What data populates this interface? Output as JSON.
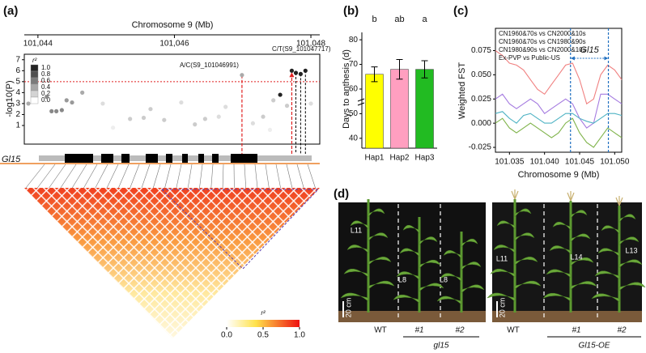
{
  "panel_labels": [
    "(a)",
    "(b)",
    "(c)",
    "(d)"
  ],
  "chart_data": [
    {
      "type": "scatter",
      "xlabel": "Chromosome 9 (Mb)",
      "ylabel": "-log10(P)",
      "x": [
        101043.86,
        101044.2,
        101044.27,
        101044.35,
        101044.13,
        101044.42,
        101044.5,
        101044.65,
        101044.95,
        101045.35,
        101045.55,
        101045.65,
        101045.85,
        101046.1,
        101046.3,
        101046.45,
        101046.65,
        101046.75,
        101046.99,
        101047.15,
        101047.3,
        101047.45,
        101047.55,
        101047.65,
        101047.72,
        101047.78,
        101047.85,
        101047.92,
        101048.0,
        101047.4,
        101045.1
      ],
      "values": [
        3.0,
        2.3,
        2.3,
        2.4,
        3.6,
        3.3,
        3.1,
        4.0,
        3.0,
        1.6,
        1.7,
        2.5,
        1.5,
        3.1,
        1.1,
        1.6,
        1.8,
        2.7,
        5.6,
        1.2,
        1.8,
        3.3,
        3.8,
        2.8,
        6.0,
        5.8,
        5.7,
        6.0,
        3.0,
        0.6,
        0.8
      ],
      "point_colors": [
        "#aaa",
        "#888",
        "#888",
        "#888",
        "#888",
        "#999",
        "#999",
        "#aaa",
        "#ddd",
        "#ccc",
        "#ccc",
        "#ccc",
        "#ccc",
        "#ddd",
        "#ccc",
        "#ccc",
        "#ddd",
        "#ddd",
        "#aaa",
        "#ddd",
        "#ccc",
        "#ccc",
        "#222",
        "#ccc",
        "#222",
        "#222",
        "#222",
        "#222",
        "#ddd",
        "#eee",
        "#eee"
      ],
      "xlim": [
        101043.8,
        101048.13
      ],
      "xticks": [
        {
          "value": 101044,
          "label": "101,044"
        },
        {
          "value": 101046,
          "label": "101,046"
        },
        {
          "value": 101048,
          "label": "101,048"
        }
      ],
      "ylim": [
        -0.7,
        7.5
      ],
      "yticks": [
        1,
        2,
        3,
        4,
        5,
        6,
        7
      ],
      "threshold": 5,
      "threshold_color": "#e02020",
      "annotations": [
        "A/C(S9_101046991)",
        "C/T(S9_101047717)"
      ],
      "legend_title": "r²",
      "legend_levels": [
        {
          "value": 1,
          "label": "1.0"
        },
        0.8,
        0.6,
        0.4,
        0.2,
        {
          "value": 0,
          "label": "0.0"
        }
      ],
      "gene": "Gl15",
      "ld_colorbar": {
        "title": "r²",
        "ticks": [
          {
            "value": 0,
            "label": "0.0"
          },
          0.5,
          {
            "value": 1,
            "label": "1.0"
          }
        ]
      }
    },
    {
      "type": "bar",
      "ylabel": "Days to anthesis (d)",
      "categories": [
        "Hap1",
        "Hap2",
        "Hap3"
      ],
      "values": [
        66,
        68,
        68
      ],
      "errors": [
        3,
        4,
        3.5
      ],
      "colors": [
        "#ffff00",
        "#ff9fc0",
        "#22bb22"
      ],
      "letters": [
        "b",
        "ab",
        "a"
      ],
      "ylim": [
        36,
        83
      ],
      "yticks": [
        40,
        50,
        60,
        70,
        80
      ]
    },
    {
      "type": "line",
      "xlabel": "Chromosome 9 (Mb)",
      "ylabel": "Weighted FST",
      "x": [
        101.033,
        101.034,
        101.035,
        101.036,
        101.037,
        101.038,
        101.039,
        101.04,
        101.041,
        101.042,
        101.043,
        101.044,
        101.045,
        101.046,
        101.047,
        101.048,
        101.049,
        101.05,
        101.051
      ],
      "series": [
        {
          "name": "CN1960&70s vs CN2000&10s",
          "color": "#a57be0",
          "values": [
            0.025,
            0.03,
            0.02,
            0.015,
            0.02,
            0.025,
            0.02,
            0.01,
            0.015,
            0.02,
            0.025,
            0.02,
            0.005,
            -0.005,
            0.0,
            0.03,
            0.03,
            0.025,
            0.02
          ]
        },
        {
          "name": "CN1960&70s vs CN1980&90s",
          "color": "#f08080",
          "values": [
            0.075,
            0.07,
            0.062,
            0.06,
            0.055,
            0.045,
            0.035,
            0.03,
            0.04,
            0.05,
            0.06,
            0.062,
            0.045,
            0.02,
            0.025,
            0.05,
            0.06,
            0.055,
            0.045
          ]
        },
        {
          "name": "CN1980&90s vs CN2000&10s",
          "color": "#7fb34a",
          "values": [
            0.0,
            0.005,
            -0.005,
            -0.01,
            -0.005,
            0.0,
            -0.005,
            -0.01,
            -0.015,
            -0.01,
            0.0,
            0.005,
            -0.01,
            -0.02,
            -0.025,
            -0.015,
            -0.005,
            -0.01,
            -0.015
          ]
        },
        {
          "name": "Ex-PVP vs Public-US",
          "color": "#4fb3c4",
          "values": [
            0.01,
            0.012,
            0.005,
            0.0,
            0.008,
            0.01,
            0.005,
            0.0,
            0.0,
            0.005,
            0.01,
            0.01,
            0.005,
            0.002,
            0.0,
            0.005,
            0.01,
            0.01,
            0.008
          ]
        }
      ],
      "xlim": [
        101.033,
        101.051
      ],
      "xticks": [
        101.035,
        {
          "value": 101.04,
          "label": "101.040"
        },
        101.045,
        {
          "value": 101.05,
          "label": "101.050"
        }
      ],
      "ylim": [
        -0.03,
        0.098
      ],
      "yticks": [
        -0.025,
        {
          "value": 0,
          "label": "0.000"
        },
        0.025,
        {
          "value": 0.05,
          "label": "0.050"
        },
        0.075
      ],
      "annotation": "Gl15",
      "region": [
        101.0437,
        101.0491
      ],
      "region_color": "#1f6fc0"
    }
  ],
  "photos": [
    {
      "labels": [
        "WT",
        "#1",
        "#2"
      ],
      "group": "gl15",
      "leaf_tags": [
        "L11",
        "L8",
        "L8"
      ],
      "scale": "20 cm"
    },
    {
      "labels": [
        "WT",
        "#1",
        "#2"
      ],
      "group": "Gl15-OE",
      "leaf_tags": [
        "L11",
        "L14",
        "L13"
      ],
      "scale": "20 cm"
    }
  ]
}
